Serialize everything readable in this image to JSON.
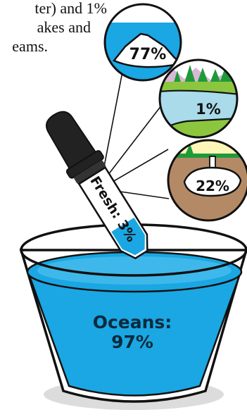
{
  "caption": {
    "line1": "ter) and 1%",
    "line2": "akes and",
    "line3": "eams."
  },
  "glacier": {
    "label": "77%",
    "icon": "glacier-icon"
  },
  "surface_water": {
    "label": "1%",
    "icon": "lake-icon"
  },
  "groundwater": {
    "label": "22%",
    "icon": "groundwater-icon"
  },
  "dropper": {
    "label": "Fresh: 3%",
    "icon": "dropper-icon"
  },
  "ocean": {
    "label_line1": "Oceans:",
    "label_line2": "97%",
    "icon": "cup-icon"
  },
  "colors": {
    "water": "#1aa7e3",
    "water_light": "#5cc6f0",
    "sky": "#ffffff",
    "grass": "#8cc63f",
    "tree": "#1f9a3a",
    "soil": "#b48a66",
    "mountain": "#d9b7d6",
    "pale_yellow": "#fdf6b7",
    "cup_shadow": "#dcdcdc"
  }
}
